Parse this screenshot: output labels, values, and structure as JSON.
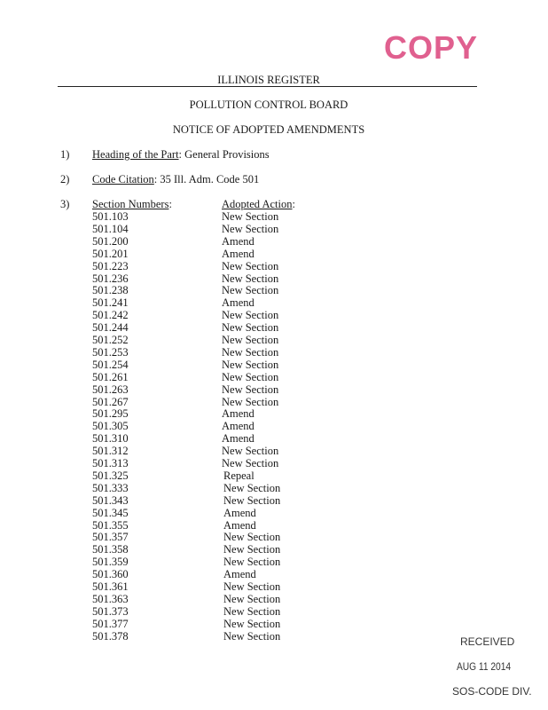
{
  "stamp_copy": "COPY",
  "header": {
    "register": "ILLINOIS REGISTER",
    "agency": "POLLUTION CONTROL BOARD",
    "notice": "NOTICE OF ADOPTED AMENDMENTS"
  },
  "items": [
    {
      "num": "1)",
      "label": "Heading of the Part",
      "value": ": General Provisions"
    },
    {
      "num": "2)",
      "label": "Code Citation",
      "value": ": 35 Ill. Adm. Code 501"
    },
    {
      "num": "3)",
      "label": "Section Numbers",
      "label_suffix": ":",
      "action_header": "Adopted Action",
      "action_suffix": ":"
    }
  ],
  "sections": [
    {
      "number": "501.103",
      "action": "New Section"
    },
    {
      "number": "501.104",
      "action": "New Section"
    },
    {
      "number": "501.200",
      "action": "Amend"
    },
    {
      "number": "501.201",
      "action": "Amend"
    },
    {
      "number": "501.223",
      "action": "New Section"
    },
    {
      "number": "501.236",
      "action": "New Section"
    },
    {
      "number": "501.238",
      "action": "New Section"
    },
    {
      "number": "501.241",
      "action": "Amend"
    },
    {
      "number": "501.242",
      "action": "New Section"
    },
    {
      "number": "501.244",
      "action": "New Section"
    },
    {
      "number": "501.252",
      "action": "New Section"
    },
    {
      "number": "501.253",
      "action": "New Section"
    },
    {
      "number": "501.254",
      "action": "New Section"
    },
    {
      "number": "501.261",
      "action": "New Section"
    },
    {
      "number": "501.263",
      "action": "New Section"
    },
    {
      "number": "501.267",
      "action": "New Section"
    },
    {
      "number": "501.295",
      "action": "Amend"
    },
    {
      "number": "501.305",
      "action": "Amend"
    },
    {
      "number": "501.310",
      "action": "Amend"
    },
    {
      "number": "501.312",
      "action": "New Section"
    },
    {
      "number": "501.313",
      "action": "New Section"
    },
    {
      "number": "501.325",
      "action": "Repeal"
    },
    {
      "number": "501.333",
      "action": "New Section"
    },
    {
      "number": "501.343",
      "action": "New Section"
    },
    {
      "number": "501.345",
      "action": "Amend"
    },
    {
      "number": "501.355",
      "action": "Amend"
    },
    {
      "number": "501.357",
      "action": "New Section"
    },
    {
      "number": "501.358",
      "action": "New Section"
    },
    {
      "number": "501.359",
      "action": "New Section"
    },
    {
      "number": "501.360",
      "action": "Amend"
    },
    {
      "number": "501.361",
      "action": "New Section"
    },
    {
      "number": "501.363",
      "action": "New Section"
    },
    {
      "number": "501.373",
      "action": "New Section"
    },
    {
      "number": "501.377",
      "action": "New Section"
    },
    {
      "number": "501.378",
      "action": "New Section"
    }
  ],
  "received_stamp": {
    "label": "RECEIVED",
    "date": "AUG 11 2014",
    "division": "SOS-CODE DIV."
  },
  "colors": {
    "copy_stamp": "#e0608f"
  }
}
